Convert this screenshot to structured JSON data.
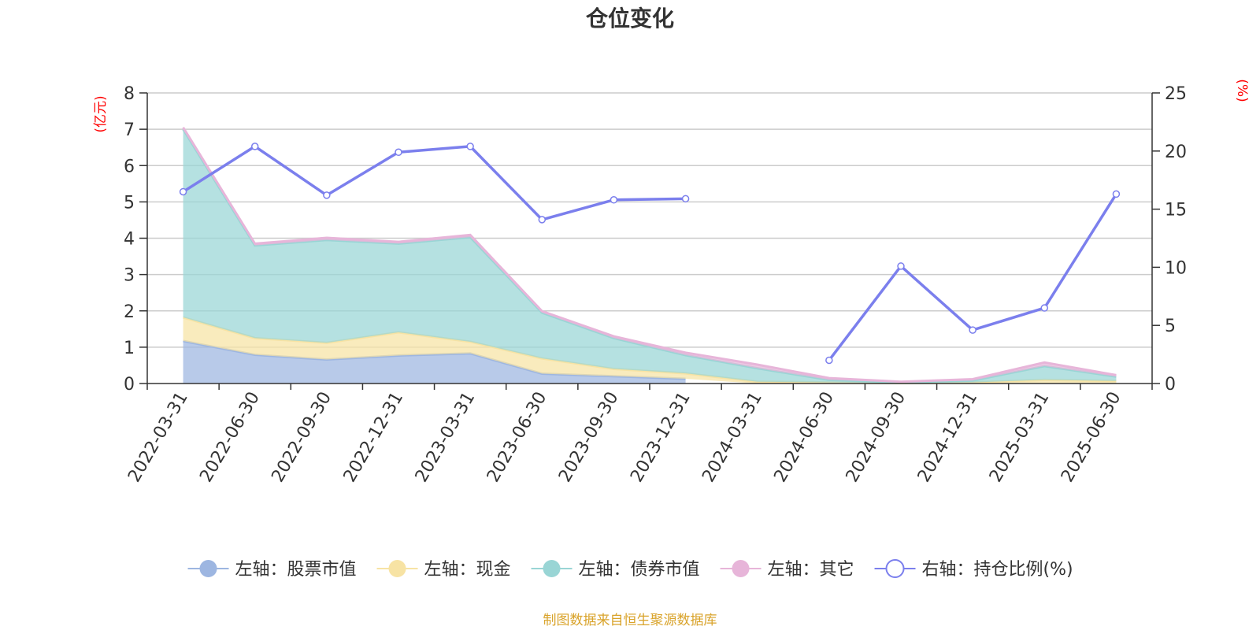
{
  "chart_data": {
    "type": "area",
    "title": "仓位变化",
    "left_unit": "(亿元)",
    "right_unit": "(%)",
    "categories": [
      "2022-03-31",
      "2022-06-30",
      "2022-09-30",
      "2022-12-31",
      "2023-03-31",
      "2023-06-30",
      "2023-09-30",
      "2023-12-31",
      "2024-03-31",
      "2024-06-30",
      "2024-09-30",
      "2024-12-31",
      "2025-03-31",
      "2025-06-30"
    ],
    "left_ylim": [
      0,
      8
    ],
    "left_ticks": [
      "0",
      "1",
      "2",
      "3",
      "4",
      "5",
      "6",
      "7",
      "8"
    ],
    "right_ylim": [
      0,
      25
    ],
    "right_ticks": [
      "0",
      "5",
      "10",
      "15",
      "20",
      "25"
    ],
    "grid": true,
    "legend_position": "bottom",
    "series": [
      {
        "name": "左轴：股票市值",
        "axis": "left",
        "kind": "stacked-area",
        "color": "#9db6e1",
        "values": [
          1.17,
          0.79,
          0.66,
          0.77,
          0.83,
          0.27,
          0.2,
          0.13,
          null,
          null,
          null,
          null,
          null,
          null
        ]
      },
      {
        "name": "左轴：现金",
        "axis": "left",
        "kind": "stacked-area",
        "color": "#f7e3a4",
        "values": [
          0.65,
          0.46,
          0.46,
          0.64,
          0.32,
          0.42,
          0.2,
          0.15,
          0.05,
          0.03,
          0.01,
          0.03,
          0.1,
          0.07
        ]
      },
      {
        "name": "左轴：债券市值",
        "axis": "left",
        "kind": "stacked-area",
        "color": "#99d5d5",
        "values": [
          5.18,
          2.55,
          2.83,
          2.44,
          2.88,
          1.26,
          0.85,
          0.5,
          0.37,
          0.07,
          0.02,
          0.05,
          0.38,
          0.12
        ]
      },
      {
        "name": "左轴：其它",
        "axis": "left",
        "kind": "stacked-area",
        "color": "#e7b5d9",
        "values": [
          0.05,
          0.05,
          0.06,
          0.05,
          0.06,
          0.04,
          0.05,
          0.07,
          0.1,
          0.05,
          0.02,
          0.04,
          0.1,
          0.04
        ]
      },
      {
        "name": "右轴：持仓比例(%)",
        "axis": "right",
        "kind": "line",
        "color": "#7b7fed",
        "values": [
          16.5,
          20.4,
          16.2,
          19.9,
          20.4,
          14.1,
          15.8,
          15.9,
          null,
          2.0,
          10.1,
          4.6,
          6.5,
          16.3
        ]
      }
    ]
  },
  "source_text": "制图数据来自恒生聚源数据库",
  "colors": {
    "title": "#333333",
    "unit": "#ff0000",
    "source": "#d9a32a",
    "grid": "#cccccc",
    "axis": "#333333"
  }
}
